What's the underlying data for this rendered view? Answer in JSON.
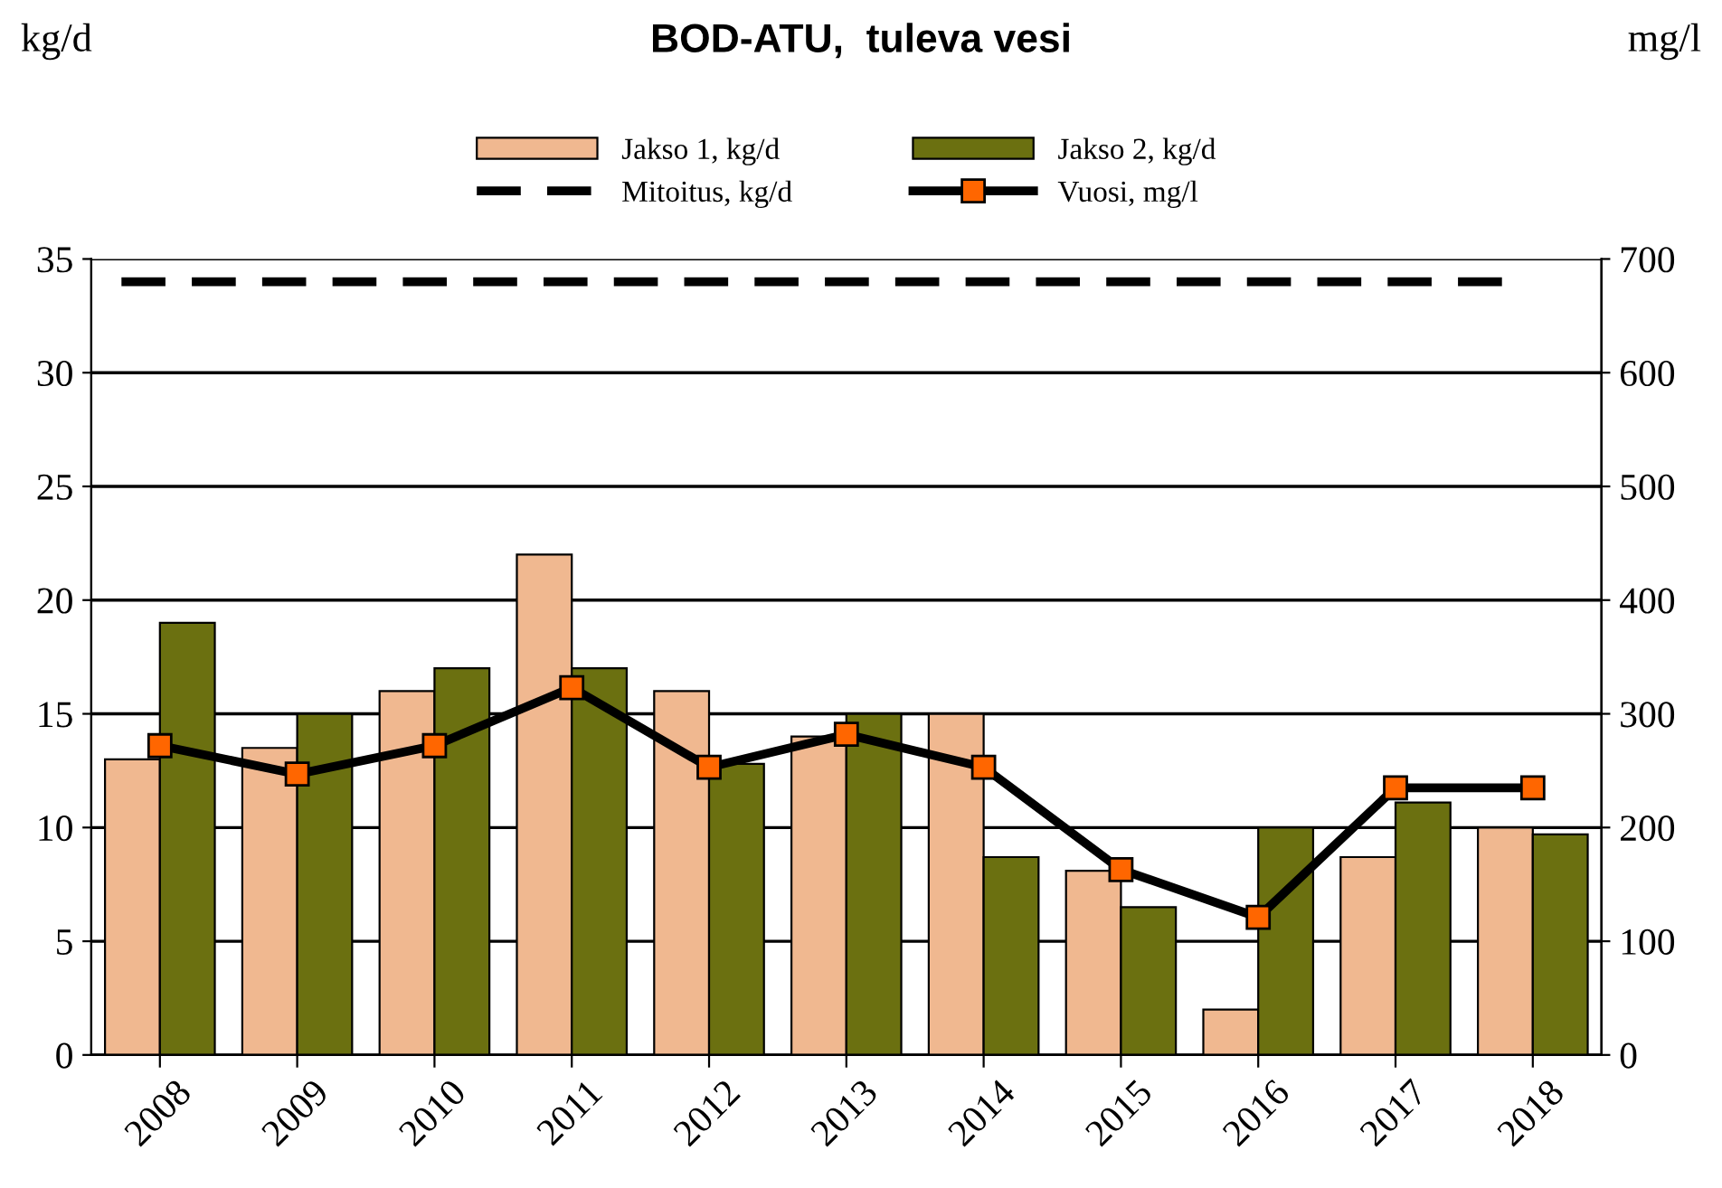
{
  "chart_data": {
    "type": "bar",
    "title": "BOD-ATU,  tuleva vesi",
    "ylabel": "kg/d",
    "y2label": "mg/l",
    "categories": [
      "2008",
      "2009",
      "2010",
      "2011",
      "2012",
      "2013",
      "2014",
      "2015",
      "2016",
      "2017",
      "2018"
    ],
    "series": [
      {
        "name": "Jakso 1, kg/d",
        "color": "#f0b890",
        "values": [
          13,
          13.5,
          16,
          22,
          16,
          14,
          15,
          8.1,
          2,
          8.7,
          10
        ]
      },
      {
        "name": "Jakso 2, kg/d",
        "color": "#6b7010",
        "values": [
          19,
          15,
          17,
          17,
          12.8,
          15,
          8.7,
          6.5,
          10,
          11.1,
          9.7
        ]
      },
      {
        "name": "Vuosi, mg/l",
        "type": "line",
        "axis": "y2",
        "color": "#000000",
        "marker": "square",
        "values": [
          272,
          247,
          272,
          323,
          253,
          282,
          253,
          163,
          121,
          235,
          235
        ]
      }
    ],
    "ref_lines": [
      {
        "axis": "y",
        "value": 34,
        "label": "Mitoitus, kg/d",
        "color": "#000000",
        "line_style": "dashed"
      }
    ],
    "ylim": [
      0,
      35
    ],
    "yticks": [
      0,
      5,
      10,
      15,
      20,
      25,
      30,
      35
    ],
    "y2lim": [
      0,
      700
    ],
    "y2ticks": [
      0,
      100,
      200,
      300,
      400,
      500,
      600,
      700
    ],
    "grid": "y",
    "legend": "top"
  }
}
